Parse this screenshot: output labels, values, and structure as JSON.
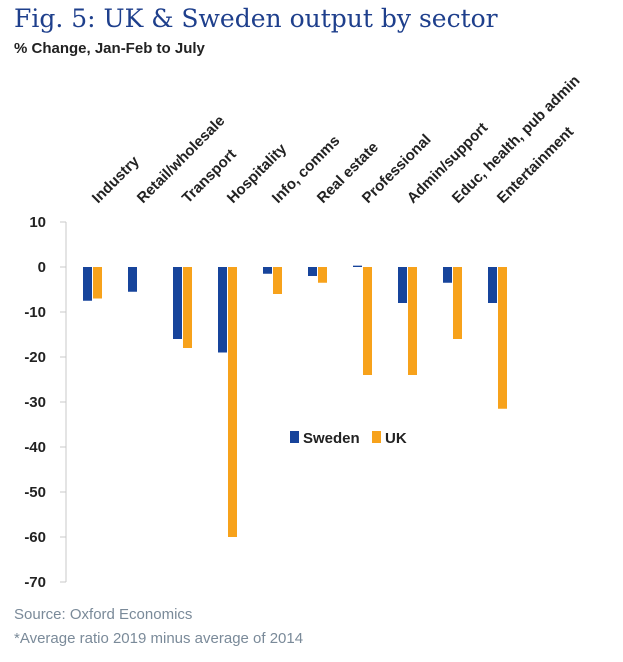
{
  "title": "Fig. 5: UK & Sweden output by sector",
  "subtitle": "% Change, Jan-Feb to July",
  "source": "Source: Oxford Economics",
  "note": "*Average ratio 2019 minus average of 2014",
  "colors": {
    "sweden": "#17449b",
    "uk": "#f7a21b",
    "axis": "#c9c9c9",
    "text": "#222222"
  },
  "chart_data": {
    "type": "bar",
    "title": "Fig. 5: UK & Sweden output by sector",
    "ylabel": "% Change, Jan-Feb to July",
    "xlabel": "",
    "ylim": [
      -70,
      10
    ],
    "yticks": [
      10,
      0,
      -10,
      -20,
      -30,
      -40,
      -50,
      -60,
      -70
    ],
    "categories": [
      "Industry",
      "Retail/wholesale",
      "Transport",
      "Hospitality",
      "Info, comms",
      "Real estate",
      "Professional",
      "Admin/support",
      "Educ, health, pub admin",
      "Entertainment"
    ],
    "series": [
      {
        "name": "Sweden",
        "values": [
          -7.5,
          -5.5,
          -16,
          -19,
          -1.5,
          -2,
          0.3,
          -8,
          -3.5,
          -8
        ]
      },
      {
        "name": "UK",
        "values": [
          -7,
          null,
          -18,
          -60,
          -6,
          -3.5,
          -24,
          -24,
          -16,
          -31.5
        ]
      }
    ],
    "legend": {
      "position": "center",
      "entries": [
        "Sweden",
        "UK"
      ]
    }
  }
}
